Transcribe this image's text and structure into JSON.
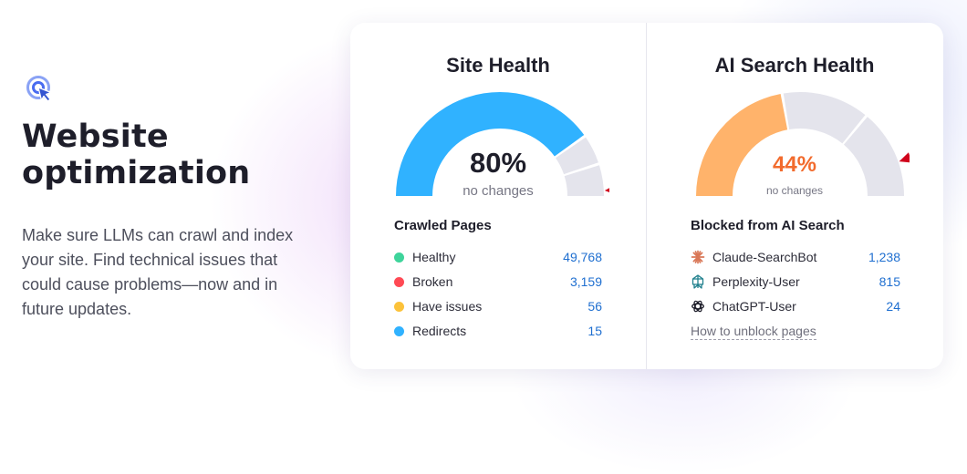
{
  "intro": {
    "icon": "cursor-click-icon",
    "title_line1": "Website",
    "title_line2": "optimization",
    "description": "Make sure LLMs can crawl and index your site. Find technical issues that could cause problems—now and in future updates."
  },
  "site_health": {
    "title": "Site Health",
    "percent": 80,
    "value_label": "80%",
    "sub_label": "no changes",
    "gauge_color": "#30b2ff",
    "track_color": "#e4e4ec",
    "marker_color": "#d0021b",
    "list_title": "Crawled Pages",
    "rows": [
      {
        "label": "Healthy",
        "value": "49,768",
        "color": "#3ed49b"
      },
      {
        "label": "Broken",
        "value": "3,159",
        "color": "#ff4954"
      },
      {
        "label": "Have issues",
        "value": "56",
        "color": "#fcc23a"
      },
      {
        "label": "Redirects",
        "value": "15",
        "color": "#30b2ff"
      }
    ]
  },
  "ai_health": {
    "title": "AI Search Health",
    "percent": 44,
    "value_label": "44%",
    "sub_label": "no changes",
    "gauge_color": "#ffb36b",
    "track_color": "#e4e4ec",
    "marker_color": "#d0021b",
    "list_title": "Blocked from AI Search",
    "rows": [
      {
        "label": "Claude-SearchBot",
        "value": "1,238",
        "icon": "claude-icon"
      },
      {
        "label": "Perplexity-User",
        "value": "815",
        "icon": "perplexity-icon"
      },
      {
        "label": "ChatGPT-User",
        "value": "24",
        "icon": "openai-icon"
      }
    ],
    "link": "How to unblock pages"
  }
}
